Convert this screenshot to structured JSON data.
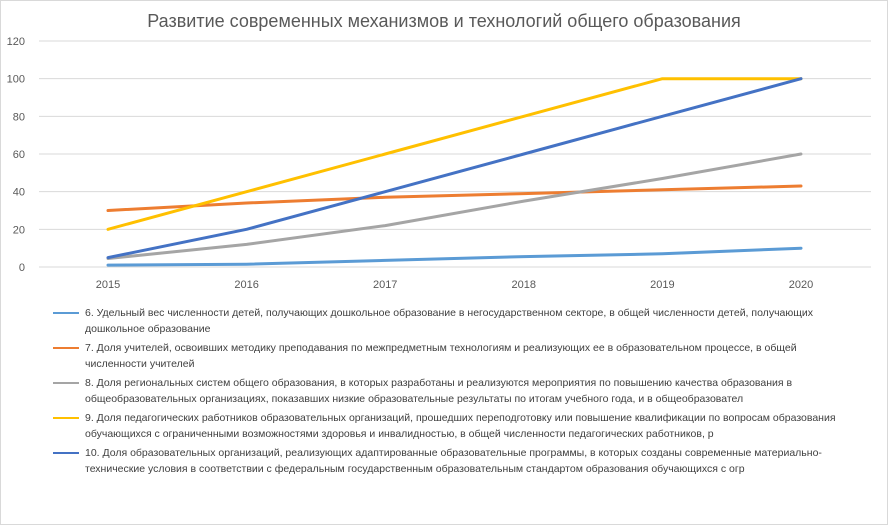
{
  "chart_data": {
    "type": "line",
    "title": "Развитие современных механизмов и технологий общего образования",
    "xlabel": "",
    "ylabel": "",
    "x": [
      "2015",
      "2016",
      "2017",
      "2018",
      "2019",
      "2020"
    ],
    "ylim": [
      0,
      120
    ],
    "yticks": [
      0,
      20,
      40,
      60,
      80,
      100,
      120
    ],
    "grid": "horizontal",
    "legend_position": "bottom",
    "series": [
      {
        "name": "6. Удельный вес численности детей, получающих дошкольное образование в негосударственном секторе, в общей численности детей, получающих дошкольное образование",
        "color": "#5b9bd5",
        "values": [
          1,
          1.5,
          3.5,
          5.5,
          7,
          10
        ]
      },
      {
        "name": "7. Доля учителей, освоивших методику преподавания по межпредметным технологиям и реализующих ее в образовательном процессе, в общей численности учителей",
        "color": "#ed7d31",
        "values": [
          30,
          34,
          37,
          39,
          41,
          43
        ]
      },
      {
        "name": "8. Доля региональных систем общего образования, в которых разработаны и реализуются мероприятия по повышению качества образования в общеобразовательных организациях, показавших низкие образовательные результаты по итогам учебного года, и в общеобразовател",
        "color": "#a5a5a5",
        "values": [
          4.5,
          12,
          22,
          35,
          47,
          60
        ]
      },
      {
        "name": "9. Доля педагогических работников образовательных организаций, прошедших переподготовку или повышение квалификации по вопросам образования обучающихся с ограниченными возможностями здоровья и инвалидностью, в общей численности педагогических работников, р",
        "color": "#ffc000",
        "values": [
          20,
          40,
          60,
          80,
          100,
          100
        ]
      },
      {
        "name": "10. Доля образовательных организаций, реализующих адаптированные образовательные программы, в которых созданы современные материально-технические условия в соответствии с федеральным государственным образовательным стандартом образования обучающихся с огр",
        "color": "#4472c4",
        "values": [
          5,
          20,
          40,
          60,
          80,
          100
        ]
      }
    ]
  }
}
